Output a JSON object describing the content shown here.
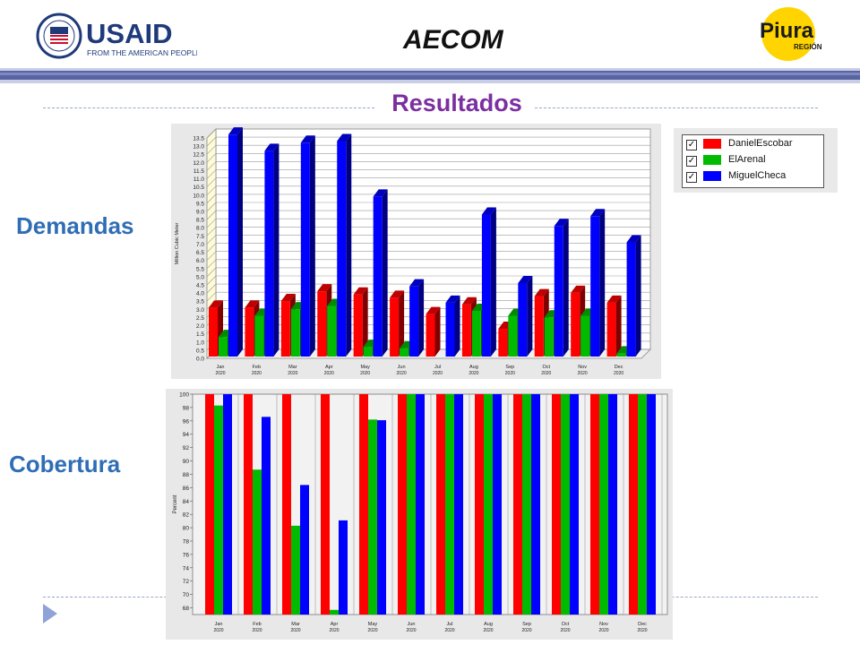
{
  "header": {
    "usaid": {
      "name": "USAID",
      "tagline": "FROM THE AMERICAN PEOPLE",
      "seal_text": "UNITED STATES AGENCY INTERNATIONAL DEVELOPMENT"
    },
    "aecom": {
      "name": "AECOM"
    },
    "piura": {
      "name": "Piura",
      "sub": "REGIÓN"
    }
  },
  "title": "Resultados",
  "labels": {
    "demandas": "Demandas",
    "cobertura": "Cobertura"
  },
  "legend": {
    "items": [
      {
        "label": "DanielEscobar",
        "color": "#ff0000",
        "checked": true
      },
      {
        "label": "ElArenal",
        "color": "#00bb00",
        "checked": true
      },
      {
        "label": "MiguelCheca",
        "color": "#0000ff",
        "checked": true
      }
    ],
    "check_mark": "✓"
  },
  "colors": {
    "red": "#ff0000",
    "green": "#00bb00",
    "blue": "#0000ff",
    "accent_title": "#7b2fa0",
    "accent_labels": "#2f6db5",
    "nav_arrow": "#8fa3d6"
  },
  "chart_data": [
    {
      "type": "bar",
      "ylabel": "Million Cubic Meter",
      "ylim": [
        0,
        13.5
      ],
      "yticks": [
        "0.0",
        "0.5",
        "1.0",
        "1.5",
        "2.0",
        "2.5",
        "3.0",
        "3.5",
        "4.0",
        "4.5",
        "5.0",
        "5.5",
        "6.0",
        "6.5",
        "7.0",
        "7.5",
        "8.0",
        "8.5",
        "9.0",
        "9.5",
        "10.0",
        "10.5",
        "11.0",
        "11.5",
        "12.0",
        "12.5",
        "13.0",
        "13.5"
      ],
      "categories": [
        "Jan",
        "Feb",
        "Mar",
        "Apr",
        "May",
        "Jun",
        "Jul",
        "Aug",
        "Sep",
        "Oct",
        "Nov",
        "Dec"
      ],
      "category_year": "2020",
      "grid": true,
      "series": [
        {
          "name": "DanielEscobar",
          "values": [
            3.0,
            3.0,
            3.4,
            4.0,
            3.8,
            3.6,
            2.6,
            3.2,
            1.7,
            3.7,
            3.9,
            3.3
          ]
        },
        {
          "name": "ElArenal",
          "values": [
            1.2,
            2.5,
            2.9,
            3.1,
            0.6,
            0.5,
            0.0,
            2.8,
            2.5,
            2.4,
            2.5,
            0.2
          ]
        },
        {
          "name": "MiguelCheca",
          "values": [
            13.6,
            12.6,
            13.1,
            13.2,
            9.8,
            4.3,
            3.3,
            8.7,
            4.5,
            8.0,
            8.6,
            7.0
          ]
        }
      ]
    },
    {
      "type": "bar",
      "ylabel": "Percent",
      "ylim": [
        67,
        100
      ],
      "yticks": [
        "68",
        "70",
        "72",
        "74",
        "76",
        "78",
        "80",
        "82",
        "84",
        "86",
        "88",
        "90",
        "92",
        "94",
        "96",
        "98",
        "100"
      ],
      "categories": [
        "Jan",
        "Feb",
        "Mar",
        "Apr",
        "May",
        "Jun",
        "Jul",
        "Aug",
        "Sep",
        "Oct",
        "Nov",
        "Dec"
      ],
      "category_year": "2020",
      "grid": false,
      "series": [
        {
          "name": "DanielEscobar",
          "values": [
            100,
            100,
            100,
            100,
            100,
            100,
            100,
            100,
            100,
            100,
            100,
            100
          ]
        },
        {
          "name": "ElArenal",
          "values": [
            98.3,
            88.7,
            80.3,
            67.7,
            96.2,
            100,
            100,
            100,
            100,
            100,
            100,
            100
          ]
        },
        {
          "name": "MiguelCheca",
          "values": [
            100,
            96.6,
            86.4,
            81.1,
            96.1,
            100,
            100,
            100,
            100,
            100,
            100,
            100
          ]
        }
      ]
    }
  ]
}
